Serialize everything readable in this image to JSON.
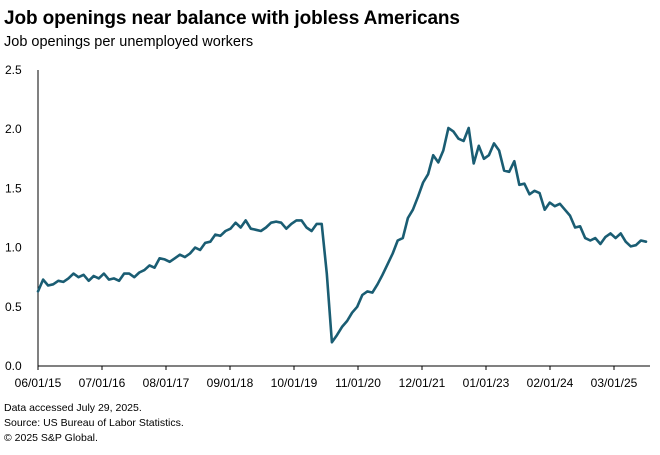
{
  "chart_data": {
    "type": "line",
    "title": "Job openings near balance with jobless Americans",
    "subtitle": "Job openings per unemployed workers",
    "xlabel": "",
    "ylabel": "",
    "ylim": [
      0,
      2.5
    ],
    "y_ticks": [
      "0.0",
      "0.5",
      "1.0",
      "1.5",
      "2.0",
      "2.5"
    ],
    "x_tick_labels": [
      "06/01/15",
      "07/01/16",
      "08/01/17",
      "09/01/18",
      "10/01/19",
      "11/01/20",
      "12/01/21",
      "01/01/23",
      "02/01/24",
      "03/01/25"
    ],
    "x_range": [
      "2015-06",
      "2025-06"
    ],
    "grid": false,
    "legend": "none",
    "series": [
      {
        "color": "#1a5d73",
        "points": [
          [
            "2015-06",
            0.63
          ],
          [
            "2015-07",
            0.73
          ],
          [
            "2015-08",
            0.68
          ],
          [
            "2015-09",
            0.69
          ],
          [
            "2015-10",
            0.72
          ],
          [
            "2015-11",
            0.71
          ],
          [
            "2015-12",
            0.74
          ],
          [
            "2016-01",
            0.78
          ],
          [
            "2016-02",
            0.75
          ],
          [
            "2016-03",
            0.77
          ],
          [
            "2016-04",
            0.72
          ],
          [
            "2016-05",
            0.76
          ],
          [
            "2016-06",
            0.74
          ],
          [
            "2016-07",
            0.78
          ],
          [
            "2016-08",
            0.73
          ],
          [
            "2016-09",
            0.74
          ],
          [
            "2016-10",
            0.72
          ],
          [
            "2016-11",
            0.78
          ],
          [
            "2016-12",
            0.78
          ],
          [
            "2017-01",
            0.75
          ],
          [
            "2017-02",
            0.79
          ],
          [
            "2017-03",
            0.81
          ],
          [
            "2017-04",
            0.85
          ],
          [
            "2017-05",
            0.83
          ],
          [
            "2017-06",
            0.91
          ],
          [
            "2017-07",
            0.9
          ],
          [
            "2017-08",
            0.88
          ],
          [
            "2017-09",
            0.91
          ],
          [
            "2017-10",
            0.94
          ],
          [
            "2017-11",
            0.92
          ],
          [
            "2017-12",
            0.95
          ],
          [
            "2018-01",
            1.0
          ],
          [
            "2018-02",
            0.98
          ],
          [
            "2018-03",
            1.04
          ],
          [
            "2018-04",
            1.05
          ],
          [
            "2018-05",
            1.11
          ],
          [
            "2018-06",
            1.1
          ],
          [
            "2018-07",
            1.14
          ],
          [
            "2018-08",
            1.16
          ],
          [
            "2018-09",
            1.21
          ],
          [
            "2018-10",
            1.17
          ],
          [
            "2018-11",
            1.23
          ],
          [
            "2018-12",
            1.16
          ],
          [
            "2019-01",
            1.15
          ],
          [
            "2019-02",
            1.14
          ],
          [
            "2019-03",
            1.17
          ],
          [
            "2019-04",
            1.21
          ],
          [
            "2019-05",
            1.22
          ],
          [
            "2019-06",
            1.21
          ],
          [
            "2019-07",
            1.16
          ],
          [
            "2019-08",
            1.2
          ],
          [
            "2019-09",
            1.23
          ],
          [
            "2019-10",
            1.23
          ],
          [
            "2019-11",
            1.17
          ],
          [
            "2019-12",
            1.14
          ],
          [
            "2020-01",
            1.2
          ],
          [
            "2020-02",
            1.2
          ],
          [
            "2020-03",
            0.78
          ],
          [
            "2020-04",
            0.2
          ],
          [
            "2020-05",
            0.26
          ],
          [
            "2020-06",
            0.33
          ],
          [
            "2020-07",
            0.38
          ],
          [
            "2020-08",
            0.45
          ],
          [
            "2020-09",
            0.5
          ],
          [
            "2020-10",
            0.6
          ],
          [
            "2020-11",
            0.63
          ],
          [
            "2020-12",
            0.62
          ],
          [
            "2021-01",
            0.69
          ],
          [
            "2021-02",
            0.77
          ],
          [
            "2021-03",
            0.86
          ],
          [
            "2021-04",
            0.95
          ],
          [
            "2021-05",
            1.06
          ],
          [
            "2021-06",
            1.08
          ],
          [
            "2021-07",
            1.25
          ],
          [
            "2021-08",
            1.32
          ],
          [
            "2021-09",
            1.43
          ],
          [
            "2021-10",
            1.55
          ],
          [
            "2021-11",
            1.62
          ],
          [
            "2021-12",
            1.78
          ],
          [
            "2022-01",
            1.72
          ],
          [
            "2022-02",
            1.82
          ],
          [
            "2022-03",
            2.01
          ],
          [
            "2022-04",
            1.98
          ],
          [
            "2022-05",
            1.92
          ],
          [
            "2022-06",
            1.9
          ],
          [
            "2022-07",
            2.01
          ],
          [
            "2022-08",
            1.71
          ],
          [
            "2022-09",
            1.86
          ],
          [
            "2022-10",
            1.75
          ],
          [
            "2022-11",
            1.78
          ],
          [
            "2022-12",
            1.88
          ],
          [
            "2023-01",
            1.82
          ],
          [
            "2023-02",
            1.65
          ],
          [
            "2023-03",
            1.64
          ],
          [
            "2023-04",
            1.73
          ],
          [
            "2023-05",
            1.53
          ],
          [
            "2023-06",
            1.54
          ],
          [
            "2023-07",
            1.45
          ],
          [
            "2023-08",
            1.48
          ],
          [
            "2023-09",
            1.46
          ],
          [
            "2023-10",
            1.32
          ],
          [
            "2023-11",
            1.38
          ],
          [
            "2023-12",
            1.35
          ],
          [
            "2024-01",
            1.37
          ],
          [
            "2024-02",
            1.32
          ],
          [
            "2024-03",
            1.27
          ],
          [
            "2024-04",
            1.17
          ],
          [
            "2024-05",
            1.18
          ],
          [
            "2024-06",
            1.08
          ],
          [
            "2024-07",
            1.06
          ],
          [
            "2024-08",
            1.08
          ],
          [
            "2024-09",
            1.03
          ],
          [
            "2024-10",
            1.09
          ],
          [
            "2024-11",
            1.12
          ],
          [
            "2024-12",
            1.08
          ],
          [
            "2025-01",
            1.12
          ],
          [
            "2025-02",
            1.05
          ],
          [
            "2025-03",
            1.01
          ],
          [
            "2025-04",
            1.02
          ],
          [
            "2025-05",
            1.06
          ],
          [
            "2025-06",
            1.05
          ]
        ]
      }
    ]
  },
  "footnotes": {
    "accessed": "Data accessed July 29, 2025.",
    "source": "Source: US Bureau of Labor Statistics.",
    "copyright": "© 2025 S&P Global."
  }
}
